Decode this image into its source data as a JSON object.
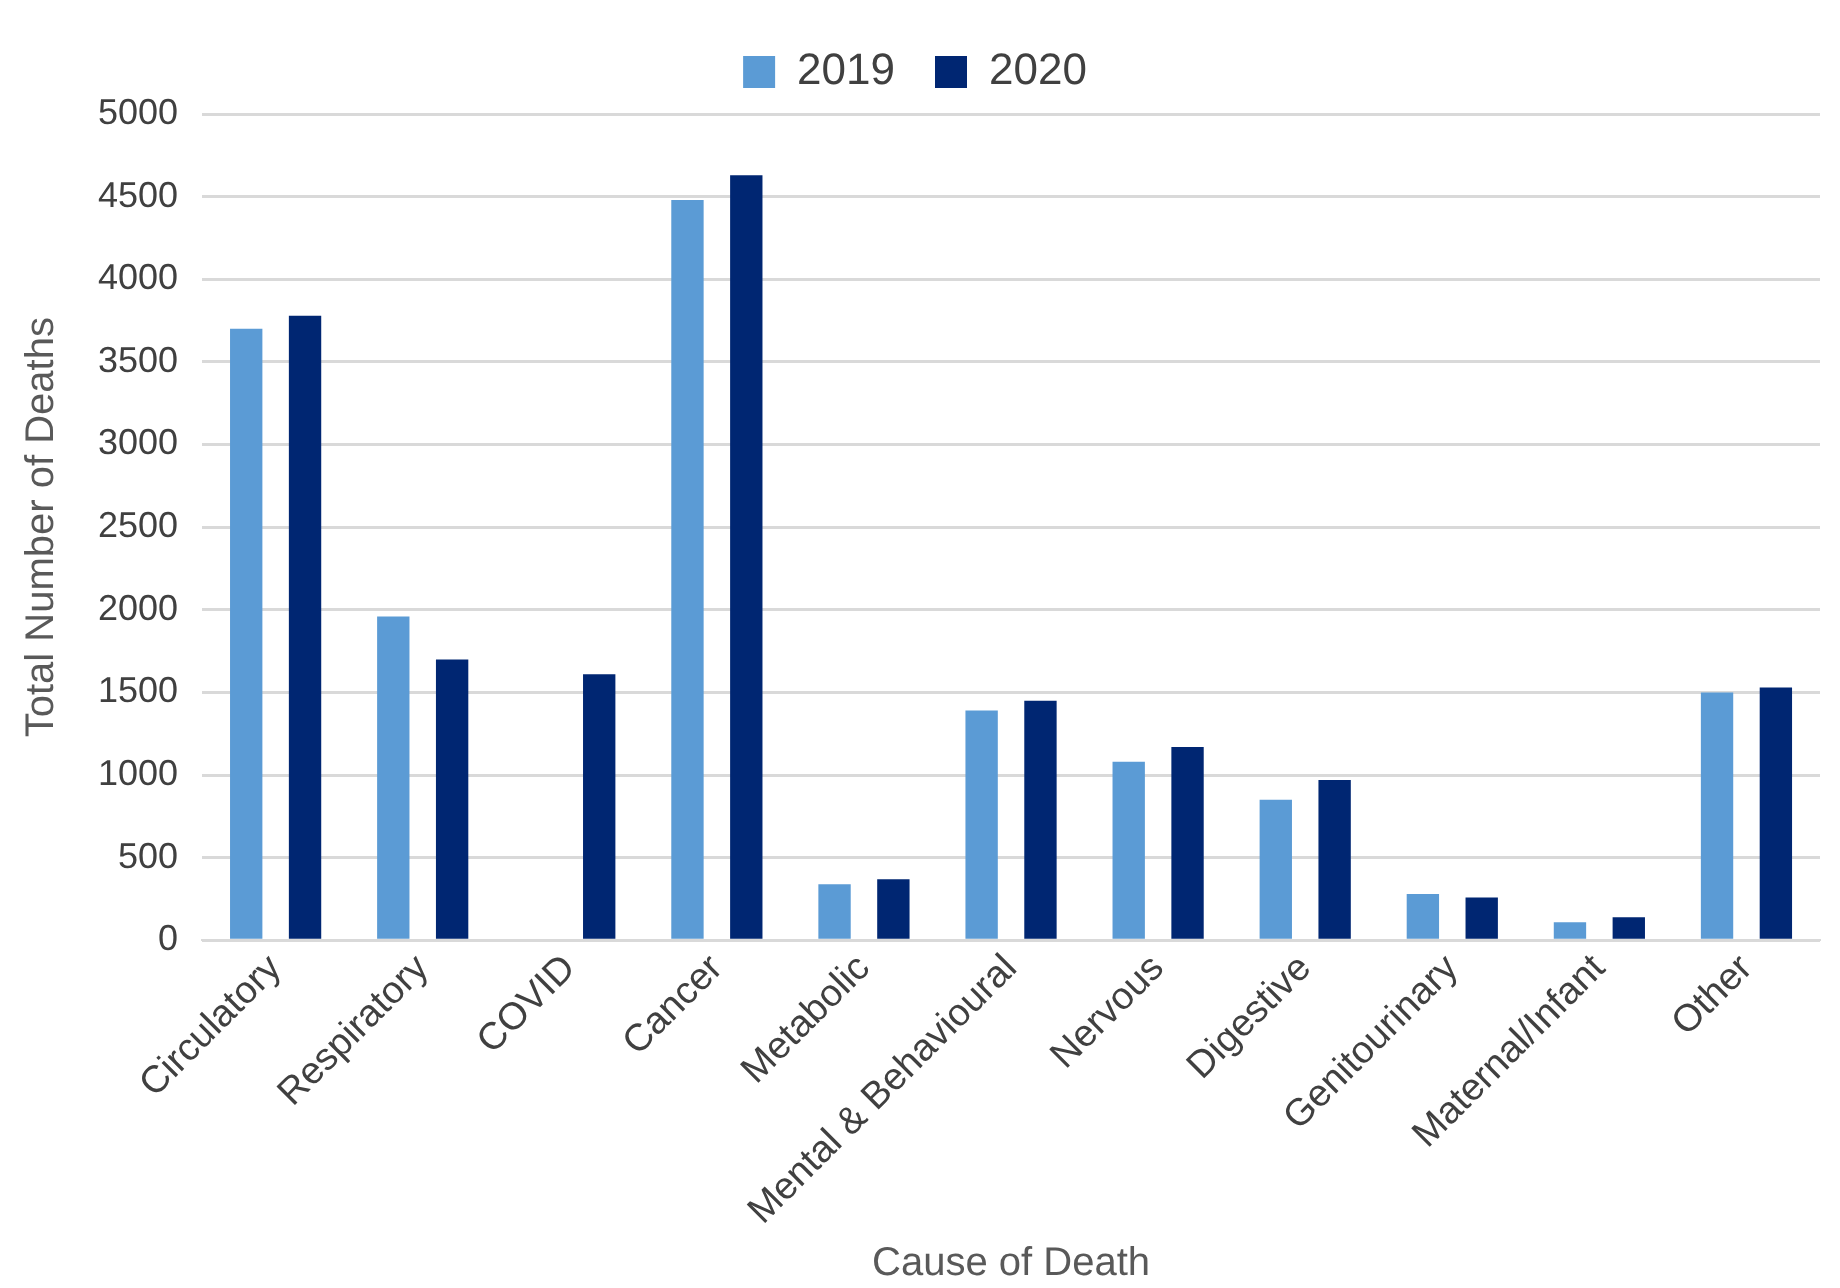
{
  "chart_data": {
    "type": "bar",
    "xlabel": "Cause of Death",
    "ylabel": "Total Number of Deaths",
    "categories": [
      "Circulatory",
      "Respiratory",
      "COVID",
      "Cancer",
      "Metabolic",
      "Mental & Behavioural",
      "Nervous",
      "Digestive",
      "Genitourinary",
      "Maternal/Infant",
      "Other"
    ],
    "series": [
      {
        "name": "2019",
        "color": "#5b9bd5",
        "values": [
          3700,
          1960,
          null,
          4480,
          340,
          1390,
          1080,
          850,
          280,
          110,
          1500
        ]
      },
      {
        "name": "2020",
        "color": "#002672",
        "values": [
          3780,
          1700,
          1610,
          4630,
          370,
          1450,
          1170,
          970,
          260,
          140,
          1530
        ]
      }
    ],
    "ylim": [
      0,
      5000
    ],
    "yticks": [
      0,
      500,
      1000,
      1500,
      2000,
      2500,
      3000,
      3500,
      4000,
      4500,
      5000
    ],
    "grid": "y",
    "legend": "top"
  }
}
